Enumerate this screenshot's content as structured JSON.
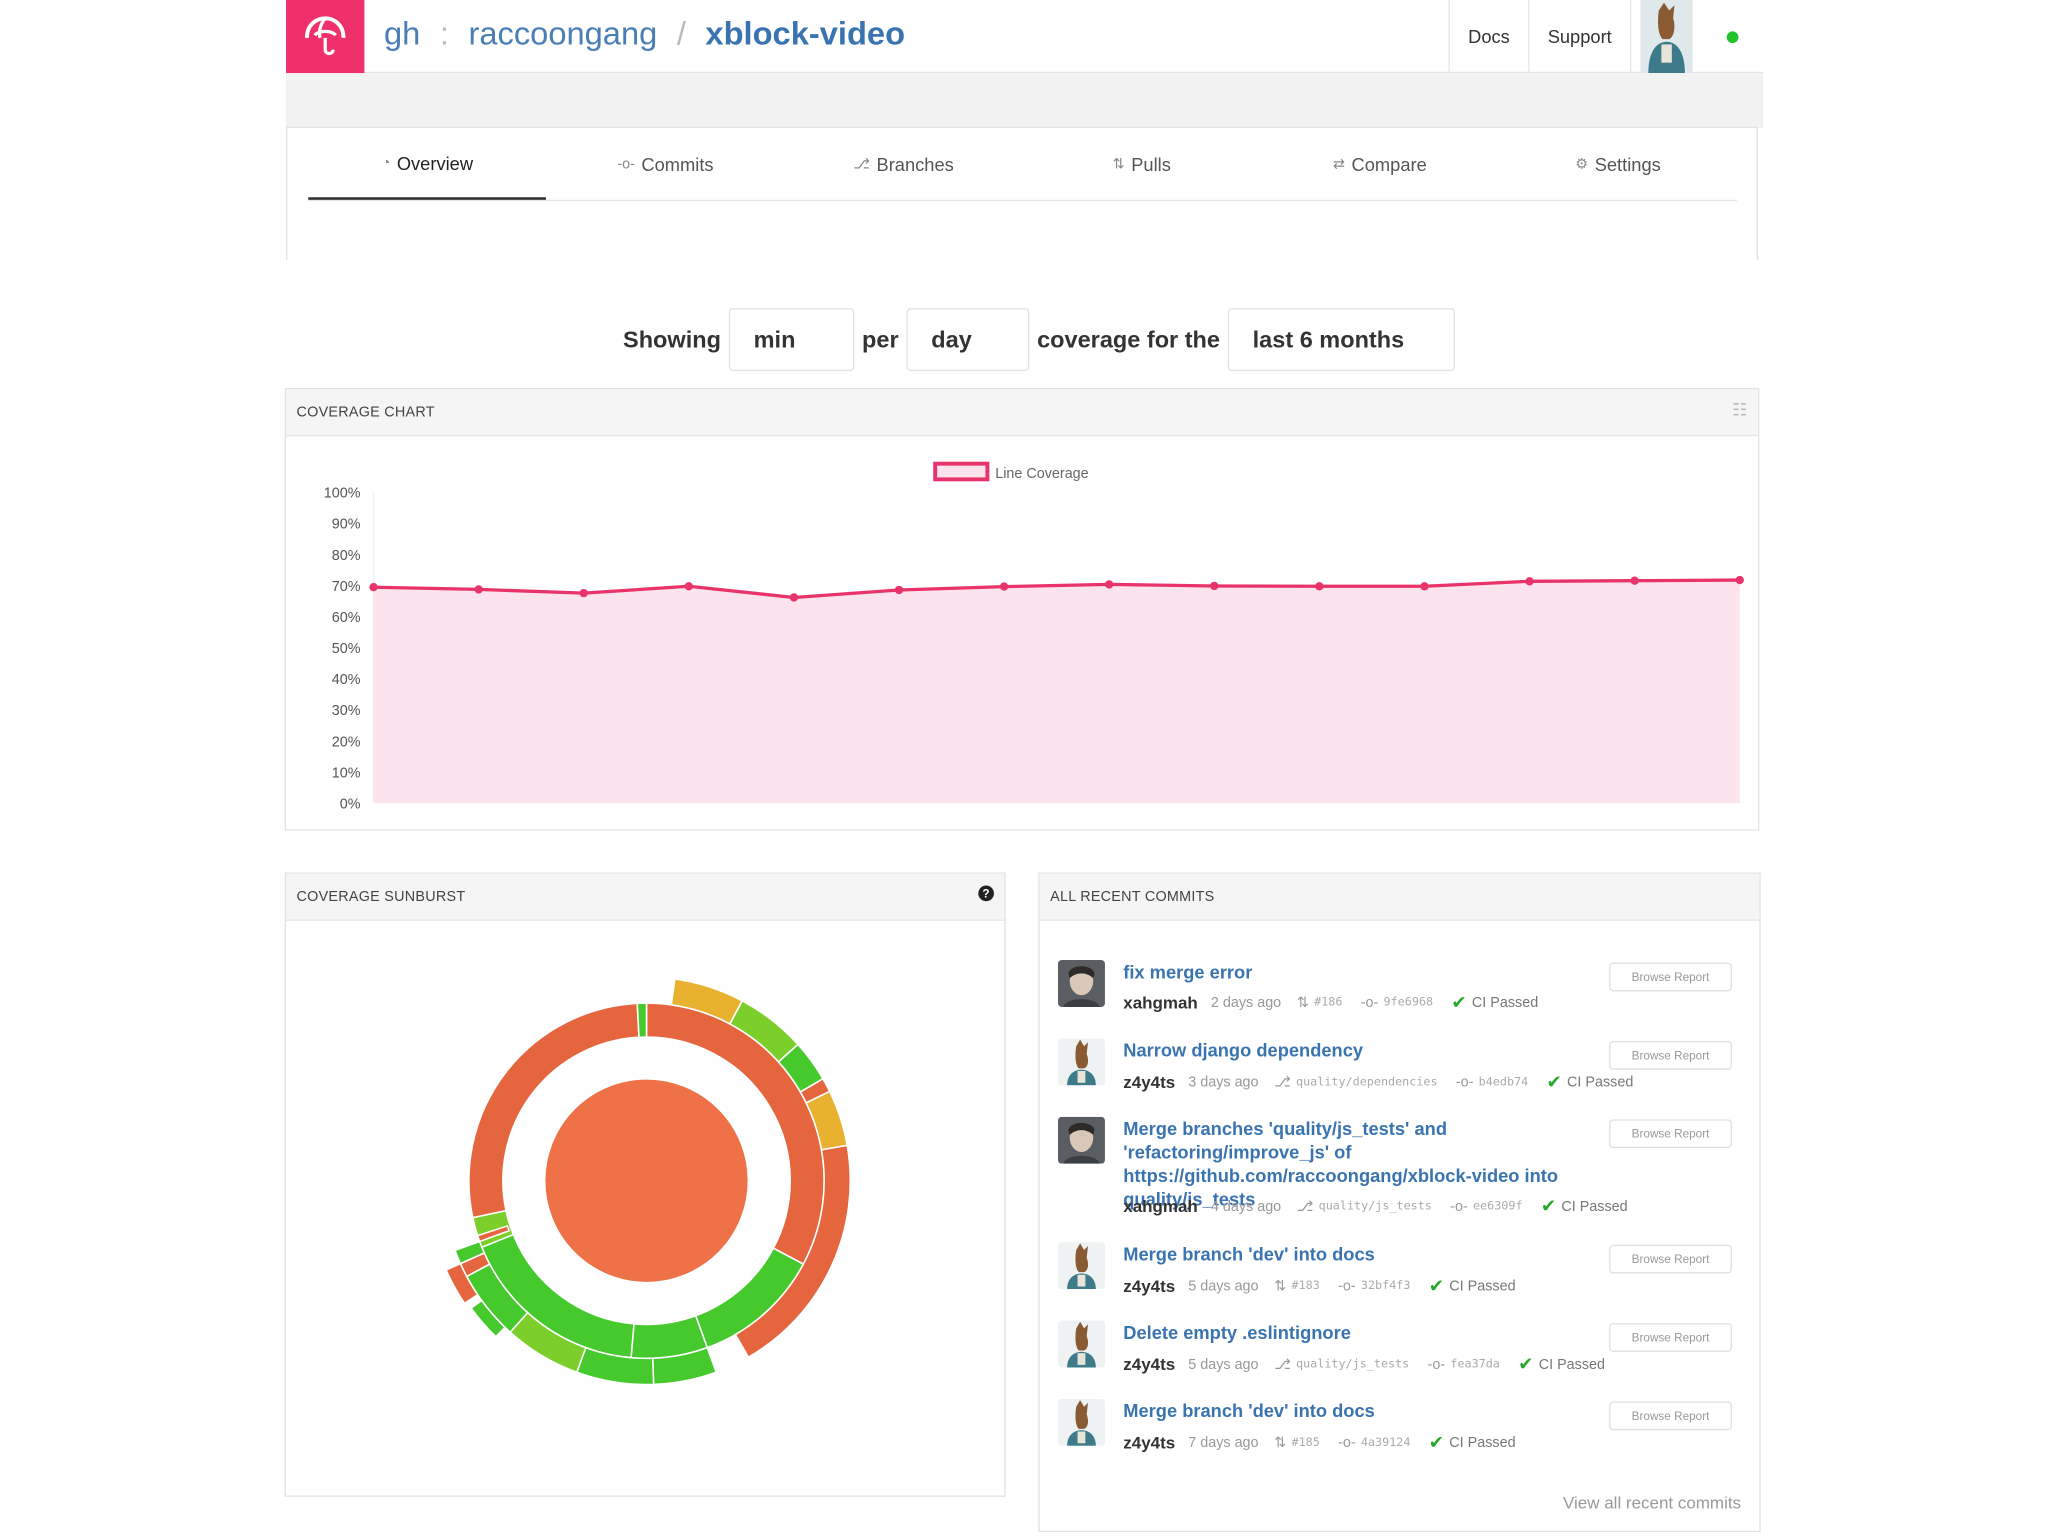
{
  "header": {
    "org_prefix": "gh",
    "colon": ":",
    "owner": "raccoongang",
    "slash": "/",
    "repo": "xblock-video",
    "docs": "Docs",
    "support": "Support"
  },
  "tabs": [
    {
      "label": "Overview",
      "icon": "dashboard-icon"
    },
    {
      "label": "Commits",
      "icon": "commit-icon"
    },
    {
      "label": "Branches",
      "icon": "branch-icon"
    },
    {
      "label": "Pulls",
      "icon": "pull-request-icon"
    },
    {
      "label": "Compare",
      "icon": "compare-icon"
    },
    {
      "label": "Settings",
      "icon": "gear-icon"
    }
  ],
  "controls": {
    "showing": "Showing",
    "agg": "min",
    "per": "per",
    "interval": "day",
    "coverage_for": "coverage for the",
    "range": "last 6 months"
  },
  "coverage_panel": {
    "title": "COVERAGE CHART"
  },
  "chart_data": {
    "type": "area",
    "legend": [
      "Line Coverage"
    ],
    "legend_position": "top-center",
    "y_ticks": [
      "0%",
      "10%",
      "20%",
      "30%",
      "40%",
      "50%",
      "60%",
      "70%",
      "80%",
      "90%",
      "100%"
    ],
    "ylim": [
      0,
      100
    ],
    "series": [
      {
        "name": "Line Coverage",
        "color": "#e8336b",
        "fill": "#fde3ee",
        "values": [
          69.5,
          68.8,
          67.6,
          69.8,
          66.2,
          68.6,
          69.7,
          70.4,
          69.9,
          69.8,
          69.8,
          71.4,
          71.6,
          71.8
        ]
      }
    ],
    "grid": false
  },
  "sunburst_panel": {
    "title": "COVERAGE SUNBURST",
    "help_icon": "question-circle-icon"
  },
  "commits_panel": {
    "title": "ALL RECENT COMMITS",
    "browse_label": "Browse Report",
    "view_all": "View all recent commits",
    "commits": [
      {
        "title": "fix merge error",
        "author": "xahgmah",
        "ago": "2 days ago",
        "ref_icon": "pull-request-icon",
        "ref": "#186",
        "sha": "9fe6968",
        "ci": "CI Passed",
        "avatar": "photo"
      },
      {
        "title": "Narrow django dependency",
        "author": "z4y4ts",
        "ago": "3 days ago",
        "ref_icon": "branch-icon",
        "ref": "quality/dependencies",
        "sha": "b4edb74",
        "ci": "CI Passed",
        "avatar": "horse"
      },
      {
        "title": "Merge branches 'quality/js_tests' and 'refactoring/improve_js' of https://github.com/raccoongang/xblock-video into quality/js_tests",
        "author": "xahgmah",
        "ago": "4 days ago",
        "ref_icon": "branch-icon",
        "ref": "quality/js_tests",
        "sha": "ee6309f",
        "ci": "CI Passed",
        "avatar": "photo"
      },
      {
        "title": "Merge branch 'dev' into docs",
        "author": "z4y4ts",
        "ago": "5 days ago",
        "ref_icon": "pull-request-icon",
        "ref": "#183",
        "sha": "32bf4f3",
        "ci": "CI Passed",
        "avatar": "horse"
      },
      {
        "title": "Delete empty .eslintignore",
        "author": "z4y4ts",
        "ago": "5 days ago",
        "ref_icon": "branch-icon",
        "ref": "quality/js_tests",
        "sha": "fea37da",
        "ci": "CI Passed",
        "avatar": "horse"
      },
      {
        "title": "Merge branch 'dev' into docs",
        "author": "z4y4ts",
        "ago": "7 days ago",
        "ref_icon": "pull-request-icon",
        "ref": "#185",
        "sha": "4a39124",
        "ci": "CI Passed",
        "avatar": "horse"
      }
    ]
  },
  "colors": {
    "brand": "#f0306b",
    "link": "#3a74b0",
    "ok": "#28a82e"
  }
}
